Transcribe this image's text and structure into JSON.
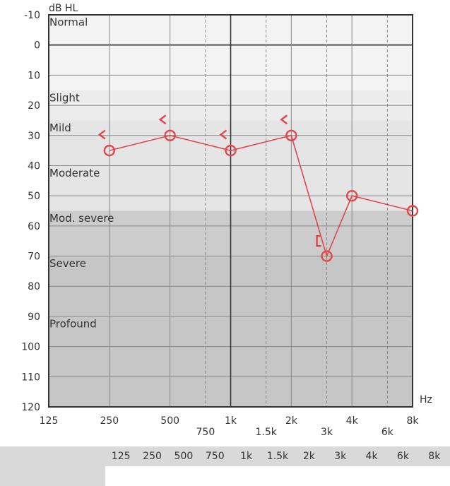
{
  "chart_data": {
    "type": "line",
    "title": "",
    "ylabel": "dB HL",
    "xlabel": "Hz",
    "ylim": [
      -10,
      120
    ],
    "y_inverted": true,
    "x_scale": "log",
    "xlim": [
      125,
      8000
    ],
    "y_ticks": [
      -10,
      0,
      10,
      20,
      30,
      40,
      50,
      60,
      70,
      80,
      90,
      100,
      110,
      120
    ],
    "x_ticks_primary": [
      {
        "hz": 125,
        "label": "125"
      },
      {
        "hz": 250,
        "label": "250"
      },
      {
        "hz": 500,
        "label": "500"
      },
      {
        "hz": 1000,
        "label": "1k"
      },
      {
        "hz": 2000,
        "label": "2k"
      },
      {
        "hz": 4000,
        "label": "4k"
      },
      {
        "hz": 8000,
        "label": "8k"
      }
    ],
    "x_ticks_secondary": [
      {
        "hz": 750,
        "label": "750"
      },
      {
        "hz": 1500,
        "label": "1.5k"
      },
      {
        "hz": 3000,
        "label": "3k"
      },
      {
        "hz": 6000,
        "label": "6k"
      }
    ],
    "zones": [
      {
        "label": "Normal",
        "from": -10,
        "to": 25,
        "color": "#f3f3f3"
      },
      {
        "label": "Slight",
        "from": 15,
        "to": 25,
        "color": "#ececec"
      },
      {
        "label": "Mild",
        "from": 25,
        "to": 40,
        "color": "#e5e5e5"
      },
      {
        "label": "Moderate",
        "from": 40,
        "to": 55,
        "color": "#e5e5e5"
      },
      {
        "label": "Mod. severe",
        "from": 55,
        "to": 70,
        "color": "#cccccc"
      },
      {
        "label": "Severe",
        "from": 70,
        "to": 90,
        "color": "#c6c6c6"
      },
      {
        "label": "Profound",
        "from": 90,
        "to": 120,
        "color": "#c6c6c6"
      }
    ],
    "zone_label_positions": [
      {
        "label": "Normal",
        "db": -7.5
      },
      {
        "label": "Slight",
        "db": 17.5
      },
      {
        "label": "Mild",
        "db": 27.5
      },
      {
        "label": "Moderate",
        "db": 42.5
      },
      {
        "label": "Mod. severe",
        "db": 57.5
      },
      {
        "label": "Severe",
        "db": 72.5
      },
      {
        "label": "Profound",
        "db": 92.5
      }
    ],
    "series": [
      {
        "symbol": "circle",
        "color": "#e0474c",
        "points": [
          {
            "hz": 250,
            "db": 35
          },
          {
            "hz": 500,
            "db": 30
          },
          {
            "hz": 1000,
            "db": 35
          },
          {
            "hz": 2000,
            "db": 30
          },
          {
            "hz": 3000,
            "db": 70
          },
          {
            "hz": 4000,
            "db": 50
          },
          {
            "hz": 8000,
            "db": 55
          }
        ]
      }
    ],
    "markers": [
      {
        "symbol": "<",
        "hz": 250,
        "db": 33
      },
      {
        "symbol": "<",
        "hz": 500,
        "db": 28
      },
      {
        "symbol": "<",
        "hz": 1000,
        "db": 33
      },
      {
        "symbol": "<",
        "hz": 2000,
        "db": 28
      },
      {
        "symbol": "[",
        "hz": 3000,
        "db": 65
      }
    ],
    "grid": true,
    "legend": "none"
  },
  "table": {
    "columns": [
      "125",
      "250",
      "500",
      "750",
      "1k",
      "1.5k",
      "2k",
      "3k",
      "4k",
      "6k",
      "8k"
    ]
  },
  "colors": {
    "series": "#e0474c",
    "grid": "#888888",
    "axis": "#333333"
  }
}
